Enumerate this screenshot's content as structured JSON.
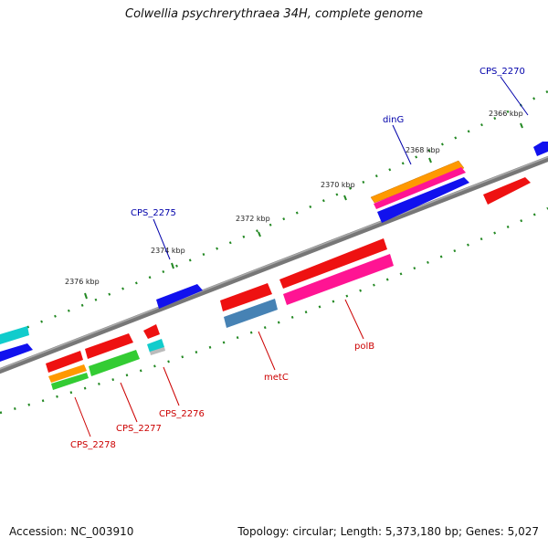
{
  "title": "Colwellia psychrerythraea 34H, complete genome",
  "footer": {
    "accession": "Accession: NC_003910",
    "topology": "Topology: circular; Length: 5,373,180 bp; Genes: 5,027"
  },
  "ticks": [
    "2366 kbp",
    "2368 kbp",
    "2370 kbp",
    "2372 kbp",
    "2374 kbp",
    "2376 kbp"
  ],
  "gene_labels": [
    {
      "label": "CPS_2270",
      "strand": "forward",
      "color": "#0000aa"
    },
    {
      "label": "dinG",
      "strand": "forward",
      "color": "#0000aa"
    },
    {
      "label": "CPS_2275",
      "strand": "forward",
      "color": "#0000aa"
    },
    {
      "label": "polB",
      "strand": "reverse",
      "color": "#cc0000"
    },
    {
      "label": "metC",
      "strand": "reverse",
      "color": "#cc0000"
    },
    {
      "label": "CPS_2276",
      "strand": "reverse",
      "color": "#cc0000"
    },
    {
      "label": "CPS_2277",
      "strand": "reverse",
      "color": "#cc0000"
    },
    {
      "label": "CPS_2278",
      "strand": "reverse",
      "color": "#cc0000"
    }
  ],
  "colors": {
    "backbone": "#777777",
    "tick": "#228822",
    "forward_label": "#0000aa",
    "reverse_label": "#cc0000",
    "red": "#ee1111",
    "blue": "#1111ee",
    "orange": "#ff9900",
    "pink": "#ff1493",
    "green": "#33cc33",
    "cyan": "#11cccc",
    "steelblue": "#4682b4"
  }
}
